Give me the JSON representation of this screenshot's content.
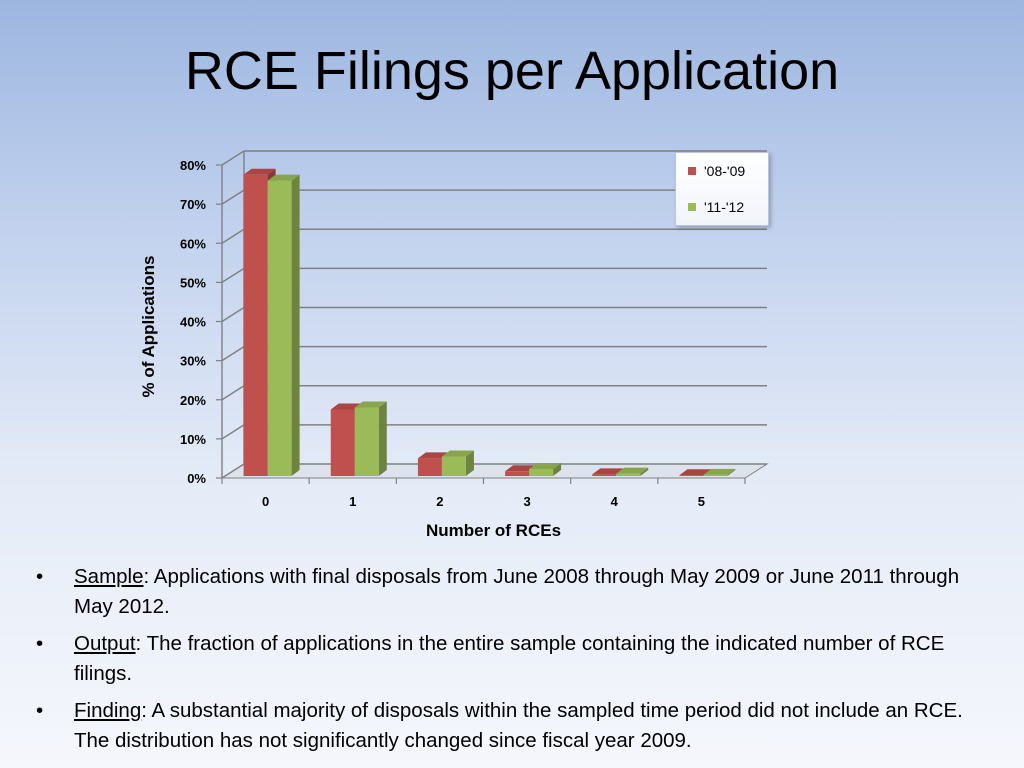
{
  "slide": {
    "title": "RCE Filings per Application"
  },
  "chart_data": {
    "type": "bar",
    "title": "",
    "xlabel": "Number of RCEs",
    "ylabel": "% of Applications",
    "categories": [
      "0",
      "1",
      "2",
      "3",
      "4",
      "5"
    ],
    "series": [
      {
        "name": "'08-'09",
        "values": [
          77,
          17,
          4.5,
          1.2,
          0.4,
          0.2
        ],
        "color": "#c0504d"
      },
      {
        "name": "'11-'12",
        "values": [
          75.5,
          17.5,
          5,
          1.8,
          0.6,
          0.3
        ],
        "color": "#9bbb59"
      }
    ],
    "ylim": [
      0,
      80
    ],
    "yticks": [
      "0%",
      "10%",
      "20%",
      "30%",
      "40%",
      "50%",
      "60%",
      "70%",
      "80%"
    ],
    "grid": true,
    "legend_position": "top-right"
  },
  "bullets": [
    {
      "term": "Sample",
      "text": ": Applications with final disposals from June 2008 through May 2009 or June 2011 through May 2012."
    },
    {
      "term": "Output",
      "text": ": The fraction of applications in the entire sample containing the indicated number of RCE filings."
    },
    {
      "term": "Finding",
      "text": ": A substantial majority of disposals within the sampled time period did not include an RCE. The distribution has not significantly changed since fiscal year 2009."
    }
  ],
  "bullet_symbol": "•"
}
